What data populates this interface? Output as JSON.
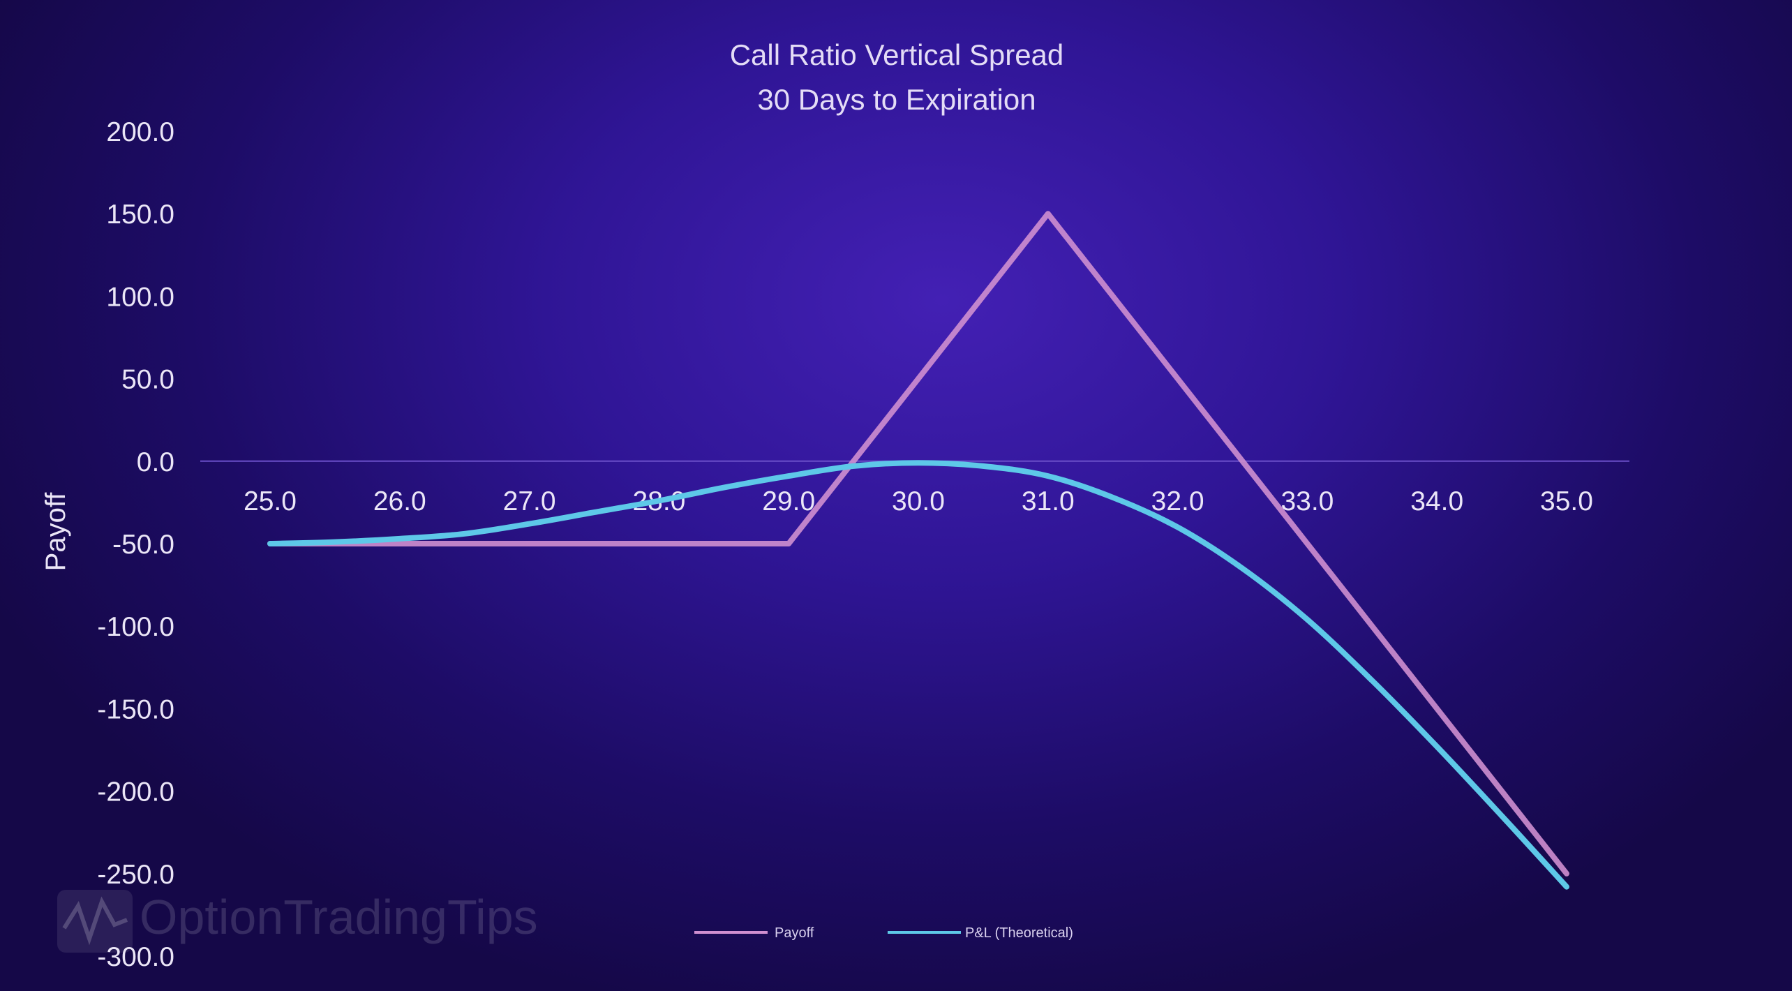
{
  "chart_data": {
    "type": "line",
    "title": "Call Ratio Vertical Spread",
    "subtitle": "30 Days to Expiration",
    "xlabel": "",
    "ylabel": "Payoff",
    "xlim": [
      25,
      35
    ],
    "ylim": [
      -300,
      200
    ],
    "x_ticks": [
      "25.0",
      "26.0",
      "27.0",
      "28.0",
      "29.0",
      "30.0",
      "31.0",
      "32.0",
      "33.0",
      "34.0",
      "35.0"
    ],
    "y_ticks": [
      "200.0",
      "150.0",
      "100.0",
      "50.0",
      "0.0",
      "-50.0",
      "-100.0",
      "-150.0",
      "-200.0",
      "-250.0",
      "-300.0"
    ],
    "grid": false,
    "legend_position": "bottom",
    "series": [
      {
        "name": "Payoff",
        "color": "#cf8fd0",
        "x": [
          25,
          29,
          31,
          35
        ],
        "y": [
          -50,
          -50,
          150,
          -250
        ]
      },
      {
        "name": "P&L (Theoretical)",
        "color": "#5ec8e8",
        "x": [
          25,
          25.5,
          26,
          26.5,
          27,
          27.5,
          28,
          28.5,
          29,
          29.5,
          30,
          30.5,
          31,
          31.5,
          32,
          32.5,
          33,
          33.5,
          34,
          34.5,
          35
        ],
        "y": [
          -50,
          -49,
          -47,
          -44,
          -38,
          -31,
          -24,
          -16,
          -9,
          -3,
          -1,
          -3,
          -9,
          -22,
          -40,
          -65,
          -96,
          -133,
          -173,
          -215,
          -258
        ]
      }
    ]
  },
  "watermark": {
    "text": "OptionTradingTips"
  }
}
